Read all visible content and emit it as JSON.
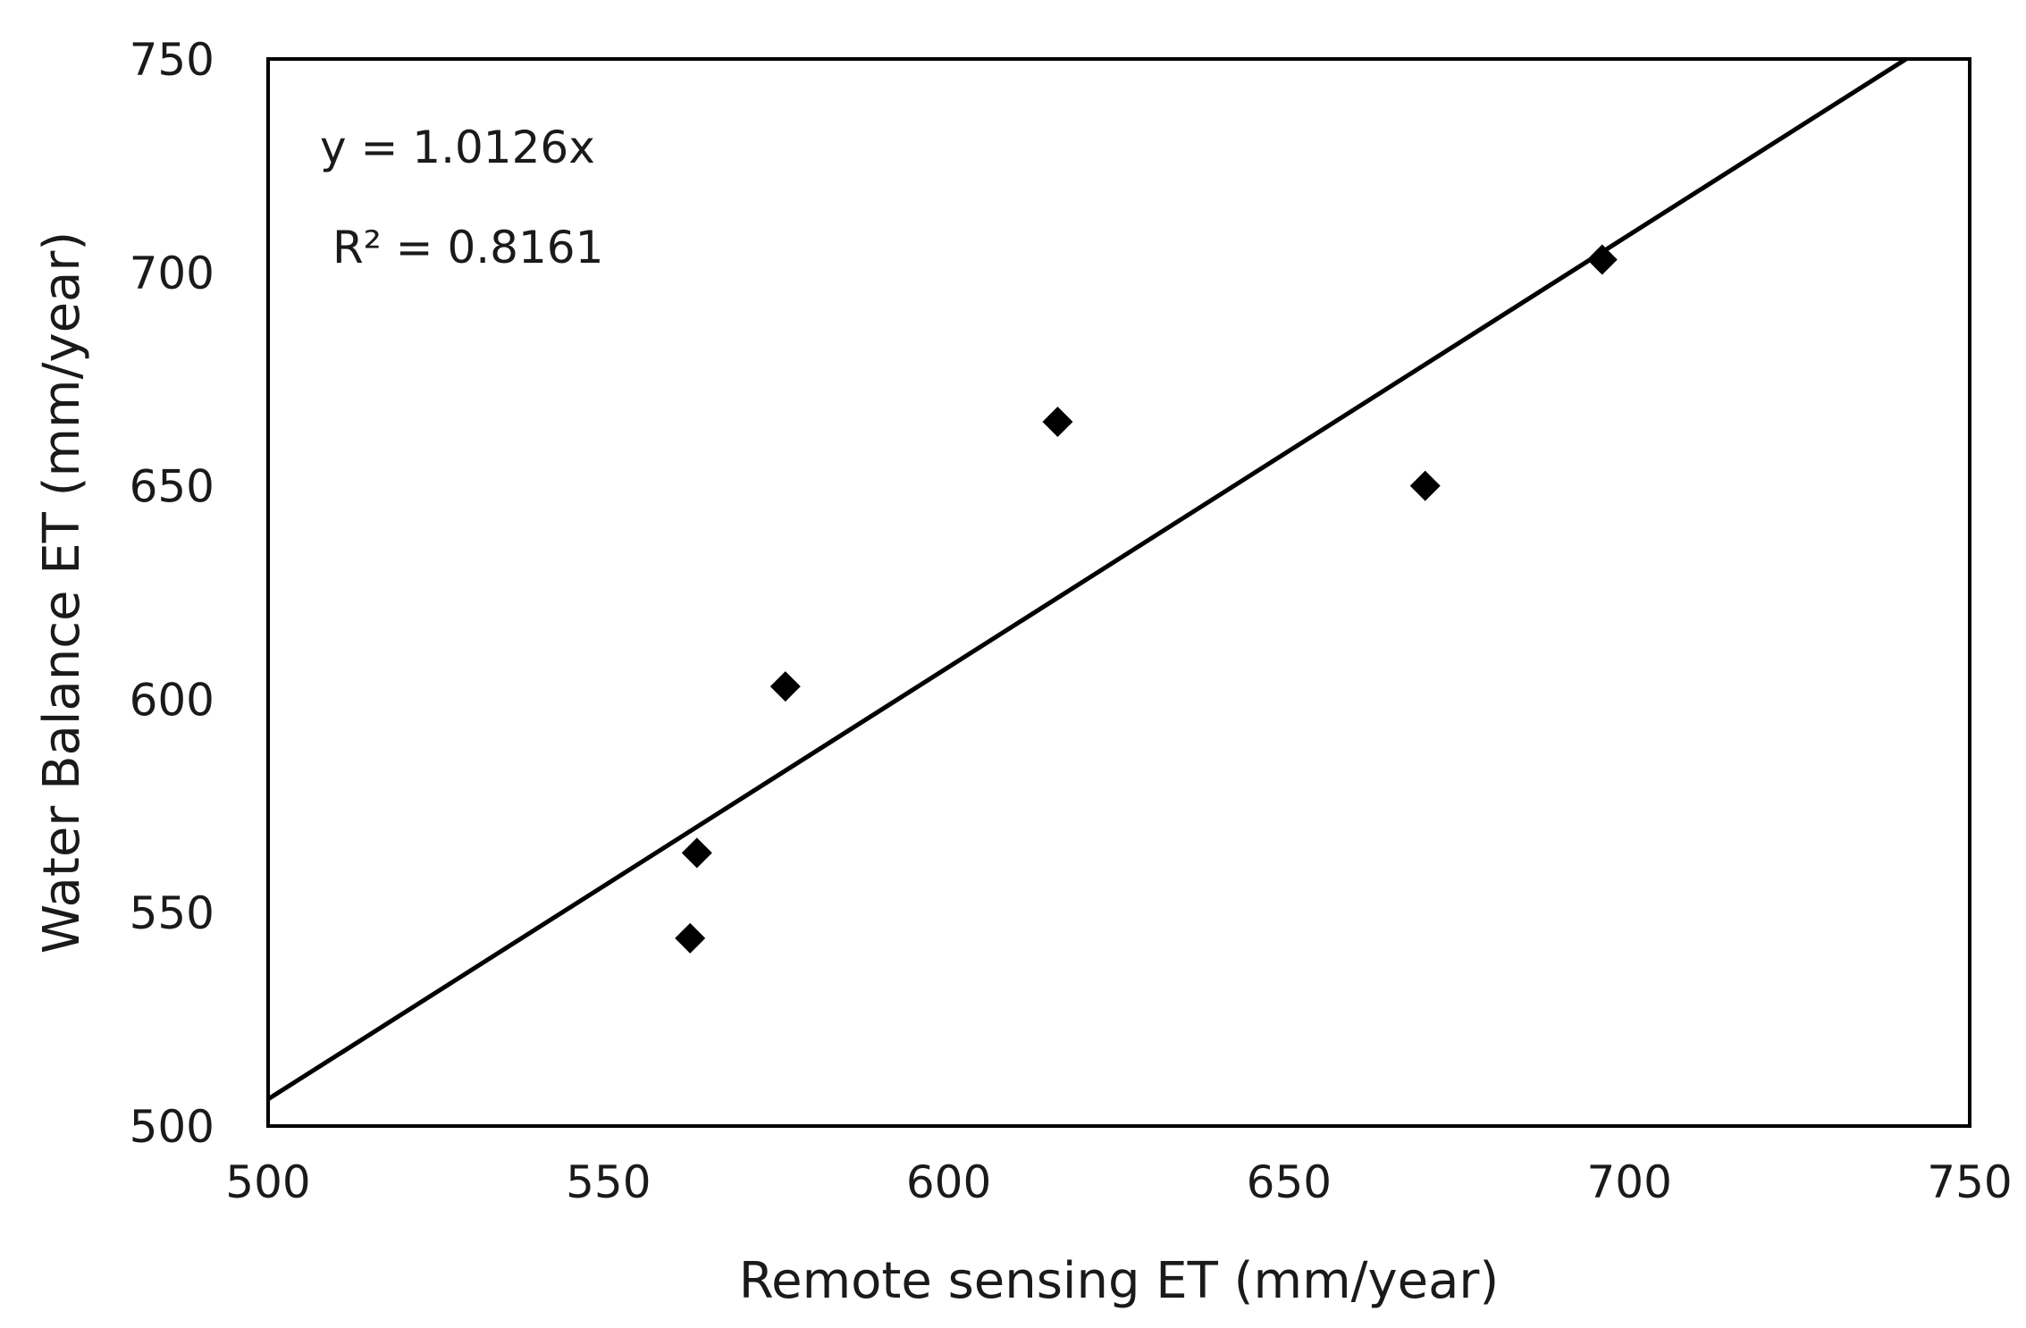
{
  "chart_data": {
    "type": "scatter",
    "title": "",
    "xlabel": "Remote sensing ET (mm/year)",
    "ylabel": "Water Balance ET (mm/year)",
    "xlim": [
      500,
      750
    ],
    "ylim": [
      500,
      750
    ],
    "xticks": [
      "500",
      "550",
      "600",
      "650",
      "700",
      "750"
    ],
    "yticks": [
      "500",
      "550",
      "600",
      "650",
      "700",
      "750"
    ],
    "grid": false,
    "legend": "none",
    "marker": "diamond",
    "series": [
      {
        "x": [
          562,
          563,
          576,
          616,
          670,
          696
        ],
        "y": [
          544,
          564,
          603,
          665,
          650,
          703
        ]
      }
    ],
    "trendline": {
      "slope": 1.0126,
      "intercept": 0,
      "equation": "y = 1.0126x",
      "r_squared": "R² = 0.8161"
    },
    "colors": {
      "marker": "#000000",
      "line": "#000000",
      "frame": "#000000"
    }
  }
}
